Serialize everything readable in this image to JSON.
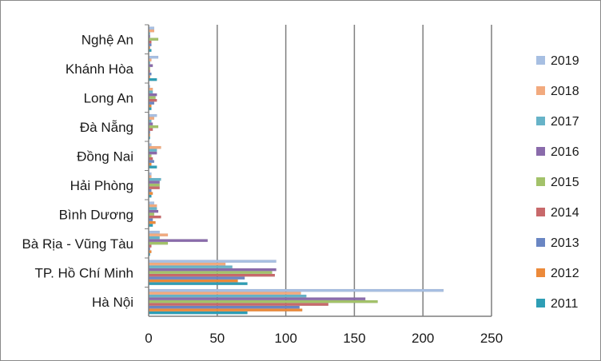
{
  "chart_data": {
    "type": "bar",
    "orientation": "horizontal",
    "title": "",
    "xlabel": "",
    "ylabel": "",
    "xlim": [
      0,
      250
    ],
    "x_ticks": [
      "0",
      "50",
      "100",
      "150",
      "200",
      "250"
    ],
    "grid": "vertical",
    "legend_position": "right",
    "categories": [
      "Hà Nội",
      "TP. Hồ Chí Minh",
      "Bà Rịa - Vũng Tàu",
      "Bình Dương",
      "Hải Phòng",
      "Đồng Nai",
      "Đà Nẵng",
      "Long An",
      "Khánh Hòa",
      "Nghệ An"
    ],
    "series": [
      {
        "name": "2011",
        "color": "#2e9eb5",
        "values": [
          72,
          72,
          1,
          3,
          2,
          6,
          1,
          2,
          6,
          2
        ]
      },
      {
        "name": "2012",
        "color": "#ec8a3a",
        "values": [
          112,
          65,
          2,
          5,
          3,
          2,
          1,
          2,
          1,
          1
        ]
      },
      {
        "name": "2013",
        "color": "#6a86c3",
        "values": [
          110,
          70,
          1,
          3,
          2,
          4,
          1,
          4,
          2,
          2
        ]
      },
      {
        "name": "2014",
        "color": "#c8696b",
        "values": [
          131,
          92,
          2,
          9,
          8,
          3,
          3,
          6,
          1,
          2
        ]
      },
      {
        "name": "2015",
        "color": "#a3c26a",
        "values": [
          167,
          90,
          14,
          4,
          8,
          2,
          7,
          5,
          1,
          7
        ]
      },
      {
        "name": "2016",
        "color": "#8a6bab",
        "values": [
          158,
          93,
          43,
          7,
          8,
          6,
          3,
          6,
          3,
          1
        ]
      },
      {
        "name": "2017",
        "color": "#67b3c8",
        "values": [
          115,
          61,
          8,
          6,
          9,
          6,
          2,
          3,
          1,
          1
        ]
      },
      {
        "name": "2018",
        "color": "#f2aa7e",
        "values": [
          111,
          56,
          14,
          6,
          2,
          9,
          4,
          3,
          2,
          4
        ]
      },
      {
        "name": "2019",
        "color": "#a7bfe2",
        "values": [
          215,
          93,
          8,
          4,
          2,
          2,
          6,
          1,
          7,
          4
        ]
      }
    ]
  }
}
